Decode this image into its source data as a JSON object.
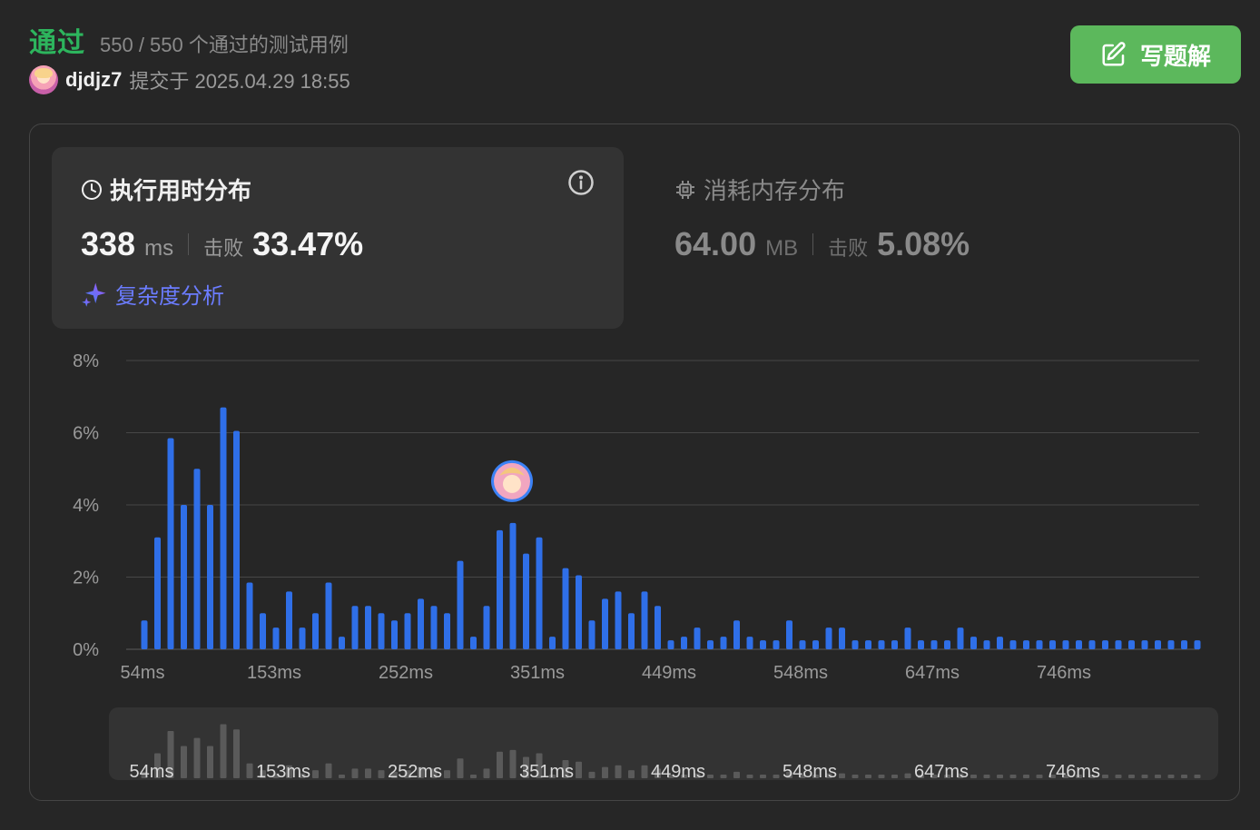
{
  "header": {
    "status": "通过",
    "cases": "550 / 550 个通过的测试用例",
    "username": "djdjz7",
    "submitted": "提交于 2025.04.29 18:55",
    "write_solution": "写题解"
  },
  "runtime": {
    "title": "执行用时分布",
    "value": "338",
    "unit": "ms",
    "beat_label": "击败",
    "beat_value": "33.47%",
    "complexity_link": "复杂度分析"
  },
  "memory": {
    "title": "消耗内存分布",
    "value": "64.00",
    "unit": "MB",
    "beat_label": "击败",
    "beat_value": "5.08%"
  },
  "colors": {
    "accept": "#2db55d",
    "bar": "#2f6fe8",
    "button": "#5cb85c",
    "link": "#6b7cff"
  },
  "chart_data": {
    "type": "bar",
    "xlabel": "",
    "ylabel": "",
    "ylim": [
      0,
      8
    ],
    "y_ticks": [
      "0%",
      "2%",
      "4%",
      "6%",
      "8%"
    ],
    "x_ticks": [
      "54ms",
      "153ms",
      "252ms",
      "351ms",
      "449ms",
      "548ms",
      "647ms",
      "746ms"
    ],
    "bin_width_ms": 9.9,
    "start_ms": 54,
    "user_bin_ms": 338,
    "values": [
      0.8,
      3.1,
      5.85,
      4.0,
      5.0,
      4.0,
      6.7,
      6.05,
      1.85,
      1.0,
      0.6,
      1.6,
      0.6,
      1.0,
      1.85,
      0.35,
      1.2,
      1.2,
      1.0,
      0.8,
      1.0,
      1.4,
      1.2,
      1.0,
      2.45,
      0.35,
      1.2,
      3.3,
      3.5,
      2.65,
      3.1,
      0.35,
      2.25,
      2.05,
      0.8,
      1.4,
      1.6,
      1.0,
      1.6,
      1.2,
      0.25,
      0.35,
      0.6,
      0.25,
      0.35,
      0.8,
      0.35,
      0.25,
      0.25,
      0.8,
      0.25,
      0.25,
      0.6,
      0.6,
      0.25,
      0.25,
      0.25,
      0.25,
      0.6,
      0.25,
      0.25,
      0.25,
      0.6,
      0.35,
      0.25,
      0.35,
      0.25,
      0.25,
      0.25,
      0.25,
      0.25,
      0.25,
      0.25,
      0.25,
      0.25,
      0.25,
      0.25,
      0.25,
      0.25,
      0.25,
      0.25
    ]
  }
}
